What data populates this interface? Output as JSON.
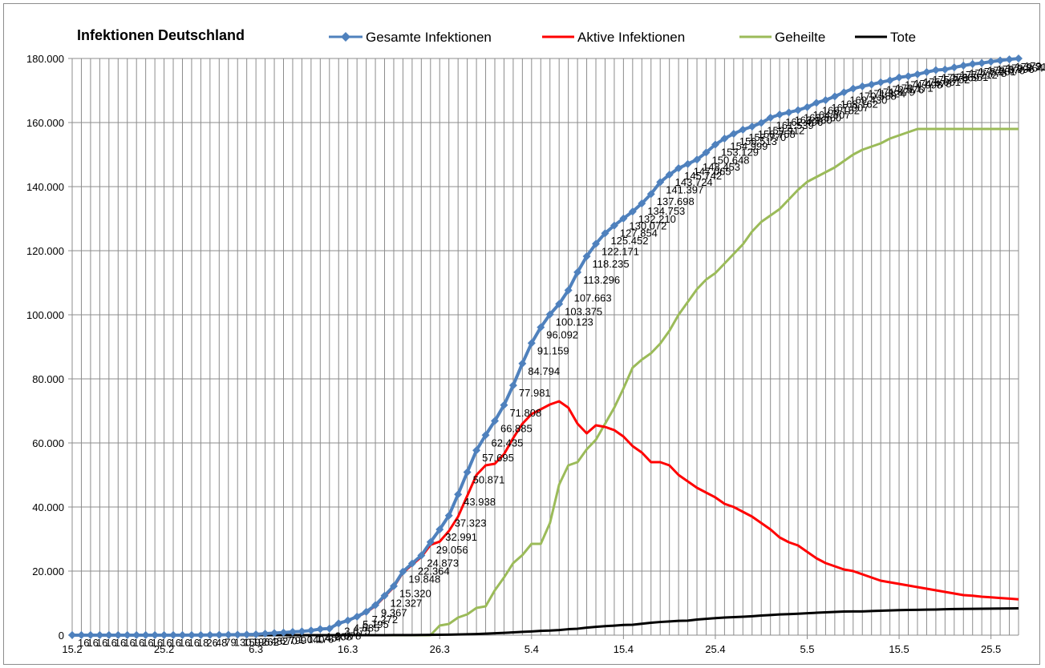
{
  "chart_data": {
    "type": "line",
    "title": "Infektionen Deutschland",
    "xlabel": "",
    "ylabel": "",
    "ylim": [
      0,
      180000
    ],
    "y_ticks": [
      "0",
      "20.000",
      "40.000",
      "60.000",
      "80.000",
      "100.000",
      "120.000",
      "140.000",
      "160.000",
      "180.000"
    ],
    "x_ticks": [
      "15.2",
      "25.2",
      "6.3",
      "16.3",
      "26.3",
      "5.4",
      "15.4",
      "25.4",
      "5.5",
      "15.5",
      "25.5"
    ],
    "grid": true,
    "legend_position": "top",
    "series": [
      {
        "name": "Gesamte Infektionen",
        "color": "#4f81bd",
        "marker": "diamond",
        "values": [
          16,
          16,
          16,
          16,
          16,
          16,
          16,
          16,
          16,
          16,
          16,
          16,
          16,
          18,
          26,
          48,
          79,
          130,
          159,
          196,
          262,
          482,
          670,
          799,
          1040,
          1176,
          1457,
          1908,
          2078,
          3675,
          4585,
          5795,
          7272,
          9367,
          12327,
          15320,
          19848,
          22364,
          24873,
          29056,
          32991,
          37323,
          43938,
          50871,
          57695,
          62435,
          66885,
          71808,
          77981,
          84794,
          91159,
          96092,
          100123,
          103375,
          107663,
          113296,
          118235,
          122171,
          125452,
          127854,
          130072,
          132210,
          134753,
          137698,
          141397,
          143724,
          145742,
          147065,
          148453,
          150648,
          153129,
          154999,
          156513,
          157770,
          158758,
          159912,
          161539,
          162496,
          163160,
          163860,
          164807,
          166152,
          167007,
          168162,
          169430,
          170588,
          171324,
          171879,
          172576,
          173171,
          174098,
          174478,
          175061,
          175752,
          176369,
          176551,
          177212,
          177778,
          178281,
          178570,
          178996,
          179364,
          179717,
          179986
        ],
        "labeled_values": [
          "16",
          "16",
          "16",
          "16",
          "16",
          "16",
          "16",
          "16",
          "16",
          "16",
          "16",
          "16",
          "16",
          "18",
          "26",
          "48",
          "79",
          "130",
          "159",
          "196",
          "262",
          "482",
          "670",
          "799",
          "1.040",
          "1.176",
          "1.457",
          "1.908",
          "2.078",
          "3.675",
          "4.585",
          "5.795",
          "7.272",
          "9.367",
          "12.327",
          "15.320",
          "19.848",
          "22.364",
          "24.873",
          "29.056",
          "32.991",
          "37.323",
          "43.938",
          "50.871",
          "57.695",
          "62.435",
          "66.885",
          "71.808",
          "77.981",
          "84.794",
          "91.159",
          "96.092",
          "100.123",
          "103.375",
          "107.663",
          "113.296",
          "118.235",
          "122.171",
          "125.452",
          "127.854",
          "130.072",
          "132.210",
          "134.753",
          "137.698",
          "141.397",
          "143.724",
          "145.742",
          "147.065",
          "148.453",
          "150.648",
          "153.129",
          "154.999",
          "156.513",
          "157.770",
          "158.758",
          "159.912",
          "161.539",
          "162.496",
          "163.160",
          "163.860",
          "164.807",
          "166.152",
          "167.007",
          "168.162",
          "169.430",
          "170.588",
          "171.324",
          "171.879",
          "172.576",
          "173.171",
          "174.098",
          "174.478",
          "175.061",
          "175.752",
          "176.369",
          "176.551",
          "177.212",
          "177.778",
          "178.281",
          "178.570",
          "178.996",
          "179.364",
          "179.717",
          "179.986"
        ]
      },
      {
        "name": "Aktive Infektionen",
        "color": "#ff0000",
        "marker": "none",
        "values": [
          0,
          0,
          0,
          0,
          0,
          0,
          0,
          0,
          0,
          0,
          0,
          0,
          0,
          2,
          10,
          32,
          63,
          114,
          143,
          180,
          246,
          466,
          654,
          783,
          1020,
          1156,
          1437,
          1880,
          2050,
          3630,
          4500,
          5700,
          7100,
          9100,
          12000,
          15000,
          19500,
          22000,
          24400,
          28200,
          29200,
          32500,
          37000,
          43500,
          50000,
          53000,
          53500,
          56500,
          61500,
          66000,
          69000,
          70500,
          72000,
          73000,
          71000,
          66000,
          63000,
          65500,
          65000,
          64000,
          62000,
          59000,
          57000,
          54000,
          54000,
          53000,
          50000,
          48000,
          46000,
          44500,
          43000,
          41000,
          40000,
          38500,
          37000,
          35000,
          33000,
          30500,
          29000,
          28000,
          26000,
          24000,
          22500,
          21500,
          20500,
          20000,
          19000,
          18000,
          17000,
          16500,
          16000,
          15500,
          15000,
          14500,
          14000,
          13500,
          13000,
          12500,
          12300,
          12000,
          11800,
          11600,
          11400,
          11200
        ],
        "labeled_values": []
      },
      {
        "name": "Geheilte",
        "color": "#9bbb59",
        "marker": "none",
        "values": [
          0,
          0,
          0,
          0,
          0,
          0,
          0,
          0,
          0,
          0,
          0,
          0,
          0,
          0,
          0,
          0,
          0,
          0,
          0,
          0,
          0,
          0,
          0,
          0,
          0,
          0,
          0,
          0,
          0,
          0,
          0,
          0,
          0,
          0,
          0,
          0,
          0,
          0,
          0,
          0,
          3000,
          3500,
          5500,
          6500,
          8500,
          9000,
          14000,
          18000,
          22500,
          25000,
          28500,
          28500,
          35000,
          47000,
          53000,
          54000,
          58000,
          61000,
          66000,
          71000,
          77000,
          83500,
          86000,
          88000,
          91000,
          95000,
          100000,
          104000,
          108000,
          111000,
          113000,
          116000,
          119000,
          122000,
          126000,
          129000,
          131000,
          133000,
          136000,
          139000,
          141500,
          143000,
          144500,
          146000,
          148000,
          150000,
          151500,
          152500,
          153500,
          155000,
          156000,
          157000,
          158000,
          158000,
          158000,
          158000,
          158000,
          158000,
          158000,
          158000,
          158000,
          158000,
          158000,
          158000
        ],
        "labeled_values": []
      },
      {
        "name": "Tote",
        "color": "#000000",
        "marker": "none",
        "values": [
          0,
          0,
          0,
          0,
          0,
          0,
          0,
          0,
          0,
          0,
          0,
          0,
          0,
          0,
          0,
          0,
          0,
          0,
          0,
          0,
          0,
          0,
          0,
          0,
          0,
          0,
          0,
          0,
          0,
          0,
          2,
          3,
          5,
          11,
          16,
          23,
          31,
          44,
          54,
          94,
          123,
          157,
          206,
          267,
          350,
          455,
          583,
          732,
          872,
          1017,
          1158,
          1342,
          1434,
          1607,
          1861,
          2016,
          2349,
          2607,
          2799,
          2969,
          3194,
          3254,
          3569,
          3868,
          4110,
          4294,
          4454,
          4538,
          4879,
          5094,
          5321,
          5500,
          5640,
          5750,
          5913,
          6126,
          6293,
          6481,
          6575,
          6692,
          6831,
          6996,
          7119,
          7266,
          7369,
          7395,
          7417,
          7533,
          7635,
          7723,
          7824,
          7881,
          7914,
          7962,
          8003,
          8090,
          8147,
          8203,
          8228,
          8261,
          8283,
          8302,
          8350,
          8390
        ],
        "labeled_values": []
      }
    ]
  }
}
